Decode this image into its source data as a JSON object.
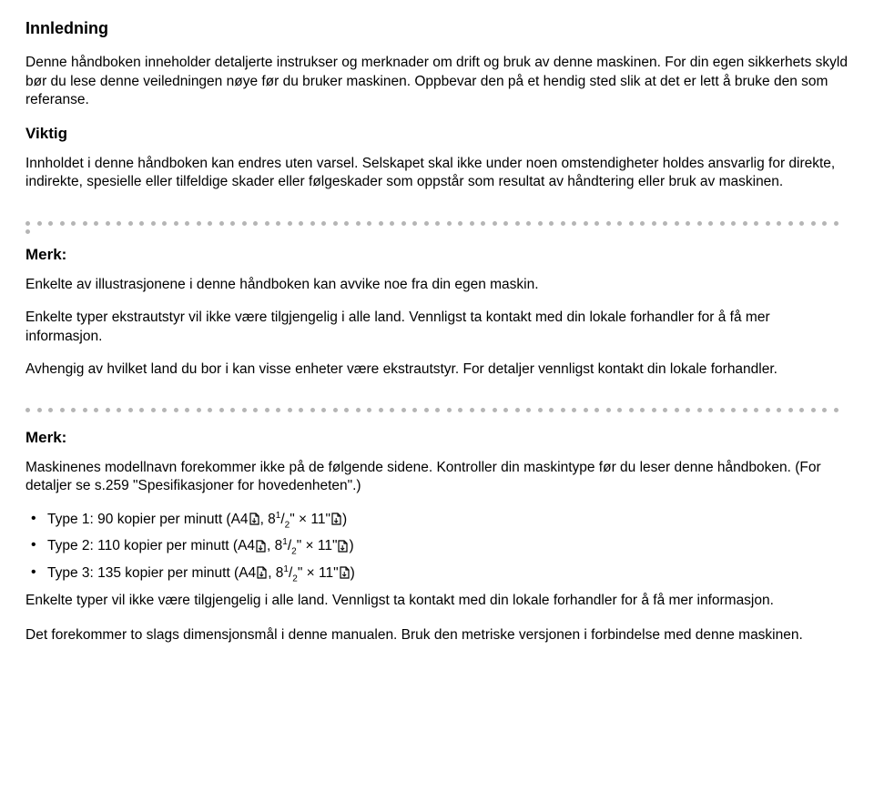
{
  "title": "Innledning",
  "intro_para": "Denne håndboken inneholder detaljerte instrukser og merknader om drift og bruk av denne maskinen. For din egen sikkerhets skyld bør du lese denne veiledningen nøye før du bruker maskinen. Oppbevar den på et hendig sted slik at det er lett å bruke den som referanse.",
  "section_viktig": "Viktig",
  "viktig_para": "Innholdet i denne håndboken kan endres uten varsel. Selskapet skal ikke under noen omstendigheter holdes ansvarlig for direkte, indirekte, spesielle eller tilfeldige skader eller følgeskader som oppstår som resultat av håndtering eller bruk av maskinen.",
  "merk_label": "Merk:",
  "merk1_p1": "Enkelte av illustrasjonene i denne håndboken kan avvike noe fra din egen maskin.",
  "merk1_p2": "Enkelte typer ekstrautstyr vil ikke være tilgjengelig i alle land. Vennligst ta kontakt med din lokale forhandler for å få mer informasjon.",
  "merk1_p3": "Avhengig av hvilket land du bor i kan visse enheter være ekstrautstyr. For detaljer vennligst kontakt din lokale forhandler.",
  "merk2_p1": "Maskinenes modellnavn forekommer ikke på de følgende sidene. Kontroller din maskintype før du leser denne håndboken. (For detaljer se s.259 \"Spesifikasjoner for hovedenheten\".)",
  "types": [
    {
      "prefix": "Type 1: 90 kopier per minutt (A4",
      "mid": ", 8",
      "tail": "\" × 11\""
    },
    {
      "prefix": "Type 2: 110 kopier per minutt (A4",
      "mid": ", 8",
      "tail": "\" × 11\""
    },
    {
      "prefix": "Type 3: 135 kopier per minutt (A4",
      "mid": ", 8",
      "tail": "\" × 11\""
    }
  ],
  "merk2_p2": "Enkelte typer vil ikke være tilgjengelig i alle land. Vennligst ta kontakt med din lokale forhandler for å få mer informasjon.",
  "merk2_p3": "Det forekommer to slags dimensjonsmål i denne manualen. Bruk den metriske versjonen i forbindelse med denne maskinen.",
  "frac_num": "1",
  "frac_den": "2",
  "dot_color": "#b5b5b5",
  "dot_count": 72
}
